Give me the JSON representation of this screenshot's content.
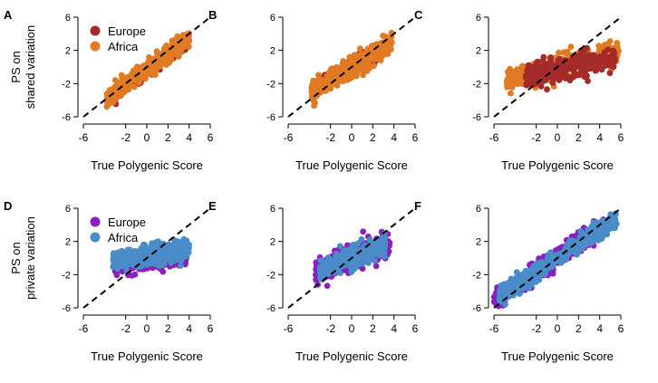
{
  "figure": {
    "row_labels": [
      "PS on\nshared variation",
      "PS on\nprivate variation"
    ],
    "xlabel": "True Polygenic Score",
    "x_ticks": [
      -6,
      -2,
      0,
      2,
      4,
      6
    ],
    "y_ticks": [
      -6,
      -2,
      2,
      6
    ],
    "colors": {
      "europe_row1": "#a52a2a",
      "africa_row1": "#e07b24",
      "europe_row2": "#8a1fc0",
      "africa_row2": "#4a8cc8",
      "diagonal": "#000000"
    }
  },
  "chart_data": [
    {
      "panel": "A",
      "type": "scatter",
      "xlim": [
        -6,
        6
      ],
      "ylim": [
        -6,
        6
      ],
      "legend": [
        "Europe",
        "Africa"
      ],
      "legend_position": "top-left",
      "reference_line": "y = x (dashed)",
      "series": [
        {
          "name": "Europe",
          "color": "#a52a2a",
          "x_range": [
            -3,
            4
          ],
          "x_center": 0.5,
          "slope": 0.95,
          "y_spread": 0.35
        },
        {
          "name": "Africa",
          "color": "#e07b24",
          "x_range": [
            -3.8,
            4
          ],
          "x_center": 0.3,
          "slope": 0.95,
          "y_spread": 0.5
        }
      ]
    },
    {
      "panel": "B",
      "type": "scatter",
      "xlim": [
        -6,
        6
      ],
      "ylim": [
        -6,
        6
      ],
      "reference_line": "y = x (dashed)",
      "series": [
        {
          "name": "Europe",
          "color": "#a52a2a",
          "x_range": [
            -3.2,
            3
          ],
          "x_center": 0,
          "slope": 0.75,
          "y_spread": 0.45
        },
        {
          "name": "Africa",
          "color": "#e07b24",
          "x_range": [
            -3.8,
            3.8
          ],
          "x_center": 0,
          "slope": 0.75,
          "y_spread": 0.6
        }
      ]
    },
    {
      "panel": "C",
      "type": "scatter",
      "xlim": [
        -6,
        6
      ],
      "ylim": [
        -6,
        6
      ],
      "reference_line": "y = x (dashed)",
      "series": [
        {
          "name": "Africa",
          "color": "#e07b24",
          "x_range": [
            -4.8,
            5.8
          ],
          "x_center": 0.5,
          "slope": 0.3,
          "y_spread": 0.7
        },
        {
          "name": "Europe",
          "color": "#a52a2a",
          "x_range": [
            -3,
            5.5
          ],
          "x_center": 1,
          "slope": 0.25,
          "y_spread": 0.65
        }
      ]
    },
    {
      "panel": "D",
      "type": "scatter",
      "xlim": [
        -6,
        6
      ],
      "ylim": [
        -6,
        6
      ],
      "legend": [
        "Europe",
        "Africa"
      ],
      "legend_position": "top-left",
      "reference_line": "y = x (dashed)",
      "series": [
        {
          "name": "Europe",
          "color": "#8a1fc0",
          "x_range": [
            -3,
            3.8
          ],
          "x_center": 0.5,
          "slope": 0.2,
          "y_spread": 0.55,
          "y_offset": -0.2
        },
        {
          "name": "Africa",
          "color": "#4a8cc8",
          "x_range": [
            -3.2,
            4
          ],
          "x_center": 0.5,
          "slope": 0.2,
          "y_spread": 0.6,
          "y_offset": 0.4
        }
      ]
    },
    {
      "panel": "E",
      "type": "scatter",
      "xlim": [
        -6,
        6
      ],
      "ylim": [
        -6,
        6
      ],
      "reference_line": "y = x (dashed)",
      "series": [
        {
          "name": "Europe",
          "color": "#8a1fc0",
          "x_range": [
            -3.4,
            3.6
          ],
          "x_center": 0,
          "slope": 0.5,
          "y_spread": 0.7
        },
        {
          "name": "Africa",
          "color": "#4a8cc8",
          "x_range": [
            -3,
            3.2
          ],
          "x_center": 0,
          "slope": 0.5,
          "y_spread": 0.6
        }
      ]
    },
    {
      "panel": "F",
      "type": "scatter",
      "xlim": [
        -6,
        6
      ],
      "ylim": [
        -6,
        6
      ],
      "reference_line": "y = x (dashed)",
      "series": [
        {
          "name": "Europe",
          "color": "#8a1fc0",
          "x_range": [
            -6,
            4.5
          ],
          "x_center": 0,
          "slope": 0.85,
          "y_spread": 0.55
        },
        {
          "name": "Africa",
          "color": "#4a8cc8",
          "x_range": [
            -5.5,
            5.6
          ],
          "x_center": 0,
          "slope": 0.85,
          "y_spread": 0.55
        }
      ]
    }
  ]
}
